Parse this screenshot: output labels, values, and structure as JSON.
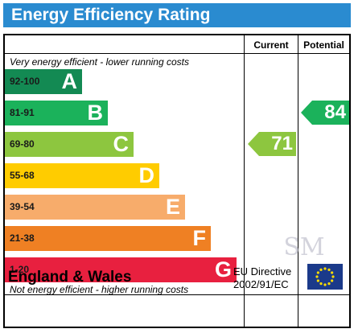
{
  "title": "Energy Efficiency Rating",
  "columns": {
    "current": "Current",
    "potential": "Potential"
  },
  "notes": {
    "top": "Very energy efficient - lower running costs",
    "bottom": "Not energy efficient - higher running costs"
  },
  "bands": [
    {
      "range": "92-100",
      "letter": "A",
      "color": "#138a53"
    },
    {
      "range": "81-91",
      "letter": "B",
      "color": "#1bb25b"
    },
    {
      "range": "69-80",
      "letter": "C",
      "color": "#8dc63f"
    },
    {
      "range": "55-68",
      "letter": "D",
      "color": "#ffcc00"
    },
    {
      "range": "39-54",
      "letter": "E",
      "color": "#f7ac6b"
    },
    {
      "range": "21-38",
      "letter": "F",
      "color": "#ef8023"
    },
    {
      "range": "1-20",
      "letter": "G",
      "color": "#e8203f"
    }
  ],
  "current_rating": {
    "value": "71",
    "band": "C",
    "color": "#8dc63f"
  },
  "potential_rating": {
    "value": "84",
    "band": "B",
    "color": "#1bb25b"
  },
  "footer": {
    "region": "England & Wales",
    "directive_line1": "EU Directive",
    "directive_line2": "2002/91/EC"
  },
  "watermark_icon": "sm-monogram-watermark",
  "flag_icon": "eu-flag-icon"
}
